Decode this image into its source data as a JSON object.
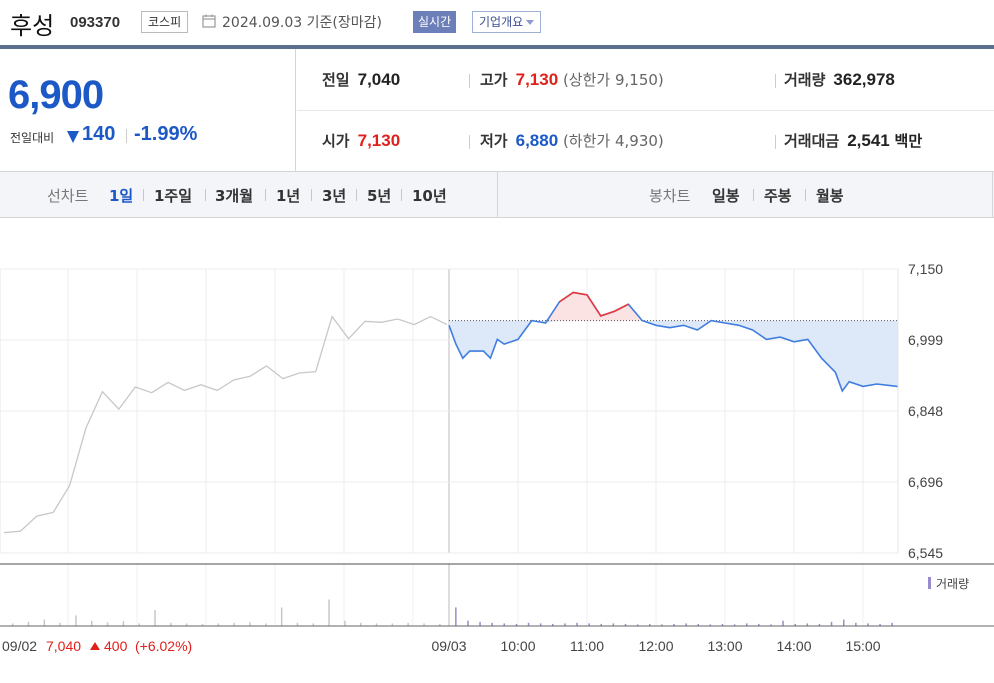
{
  "header": {
    "stock_name": "후성",
    "stock_code": "093370",
    "market": "코스피",
    "date_text": "2024.09.03  기준(장마감)",
    "realtime_label": "실시간",
    "company_info_label": "기업개요"
  },
  "price": {
    "current": "6,900",
    "change_label": "전일대비",
    "change_value": "140",
    "change_percent": "-1.99%",
    "direction": "down",
    "color_down": "#1c59c6",
    "color_up": "#e0201b"
  },
  "stats": {
    "prev_close_label": "전일",
    "prev_close": "7,040",
    "high_label": "고가",
    "high": "7,130",
    "upper_limit": "(상한가 9,150)",
    "volume_label": "거래량",
    "volume": "362,978",
    "open_label": "시가",
    "open": "7,130",
    "low_label": "저가",
    "low": "6,880",
    "lower_limit": "(하한가 4,930)",
    "amount_label": "거래대금",
    "amount": "2,541",
    "amount_unit": "백만"
  },
  "periods": {
    "line_chart_label": "선차트",
    "line_items": [
      "1일",
      "1주일",
      "3개월",
      "1년",
      "3년",
      "5년",
      "10년"
    ],
    "active": "1일",
    "candle_chart_label": "봉차트",
    "candle_items": [
      "일봉",
      "주봉",
      "월봉"
    ]
  },
  "chart_data": {
    "type": "line",
    "y_ticks": [
      "7,150",
      "6,999",
      "6,848",
      "6,696",
      "6,545"
    ],
    "ylim": [
      6545,
      7150
    ],
    "reference_price": 7040,
    "x_ticks": [
      "09/03",
      "10:00",
      "11:00",
      "12:00",
      "13:00",
      "14:00",
      "15:00"
    ],
    "prev_day_label": "09/02",
    "prev_day_close": "7,040",
    "prev_day_change": "400",
    "prev_day_change_pct": "(+6.02%)",
    "volume_legend": "거래량",
    "prev_day_series": {
      "x": [
        0,
        0.25,
        0.5,
        0.75,
        1,
        1.25,
        1.5,
        1.75,
        2,
        2.25,
        2.5,
        2.75,
        3,
        3.25,
        3.5,
        3.75,
        4,
        4.25,
        4.5,
        4.75,
        5,
        5.25,
        5.5,
        5.75,
        6,
        6.25,
        6.5,
        6.75
      ],
      "y": [
        6580,
        6600,
        6615,
        6640,
        6680,
        6820,
        6880,
        6860,
        6890,
        6895,
        6900,
        6900,
        6895,
        6900,
        6905,
        6930,
        6935,
        6925,
        6920,
        6940,
        7040,
        7010,
        7030,
        7045,
        7035,
        7040,
        7040,
        7040
      ]
    },
    "today_series": {
      "x": [
        0,
        0.1,
        0.2,
        0.3,
        0.5,
        0.6,
        0.7,
        0.8,
        1.0,
        1.2,
        1.4,
        1.6,
        1.8,
        2.0,
        2.2,
        2.4,
        2.6,
        2.8,
        3.0,
        3.2,
        3.4,
        3.6,
        3.8,
        4.0,
        4.2,
        4.4,
        4.6,
        4.8,
        5.0,
        5.2,
        5.4,
        5.6,
        5.7,
        5.8,
        6.0,
        6.2,
        6.5
      ],
      "y": [
        7030,
        6990,
        6960,
        6975,
        6975,
        6960,
        7000,
        6990,
        7000,
        7040,
        7035,
        7080,
        7100,
        7095,
        7050,
        7060,
        7075,
        7040,
        7030,
        7025,
        7030,
        7020,
        7040,
        7035,
        7030,
        7020,
        7000,
        7005,
        6995,
        7000,
        6960,
        6930,
        6890,
        6910,
        6900,
        6905,
        6900
      ]
    },
    "prev_day_volume": [
      0.05,
      0.08,
      0.12,
      0.06,
      0.2,
      0.1,
      0.07,
      0.09,
      0.05,
      0.3,
      0.06,
      0.05,
      0.04,
      0.05,
      0.06,
      0.07,
      0.05,
      0.35,
      0.06,
      0.05,
      0.5,
      0.1,
      0.06,
      0.05,
      0.05,
      0.06,
      0.05,
      0.04
    ],
    "today_volume": [
      0.35,
      0.1,
      0.08,
      0.06,
      0.05,
      0.04,
      0.06,
      0.05,
      0.04,
      0.05,
      0.06,
      0.05,
      0.04,
      0.05,
      0.04,
      0.03,
      0.04,
      0.03,
      0.04,
      0.05,
      0.04,
      0.03,
      0.04,
      0.03,
      0.05,
      0.04,
      0.03,
      0.1,
      0.04,
      0.05,
      0.04,
      0.08,
      0.12,
      0.06,
      0.05,
      0.04,
      0.06
    ],
    "grid": true,
    "colors": {
      "prev_line": "#c8c8c8",
      "today_down": "#3f7ee0",
      "today_up": "#e8383b",
      "fill_down": "#dde8f8",
      "fill_up": "#fbe3e3",
      "volume": "#9a8bd0"
    }
  }
}
